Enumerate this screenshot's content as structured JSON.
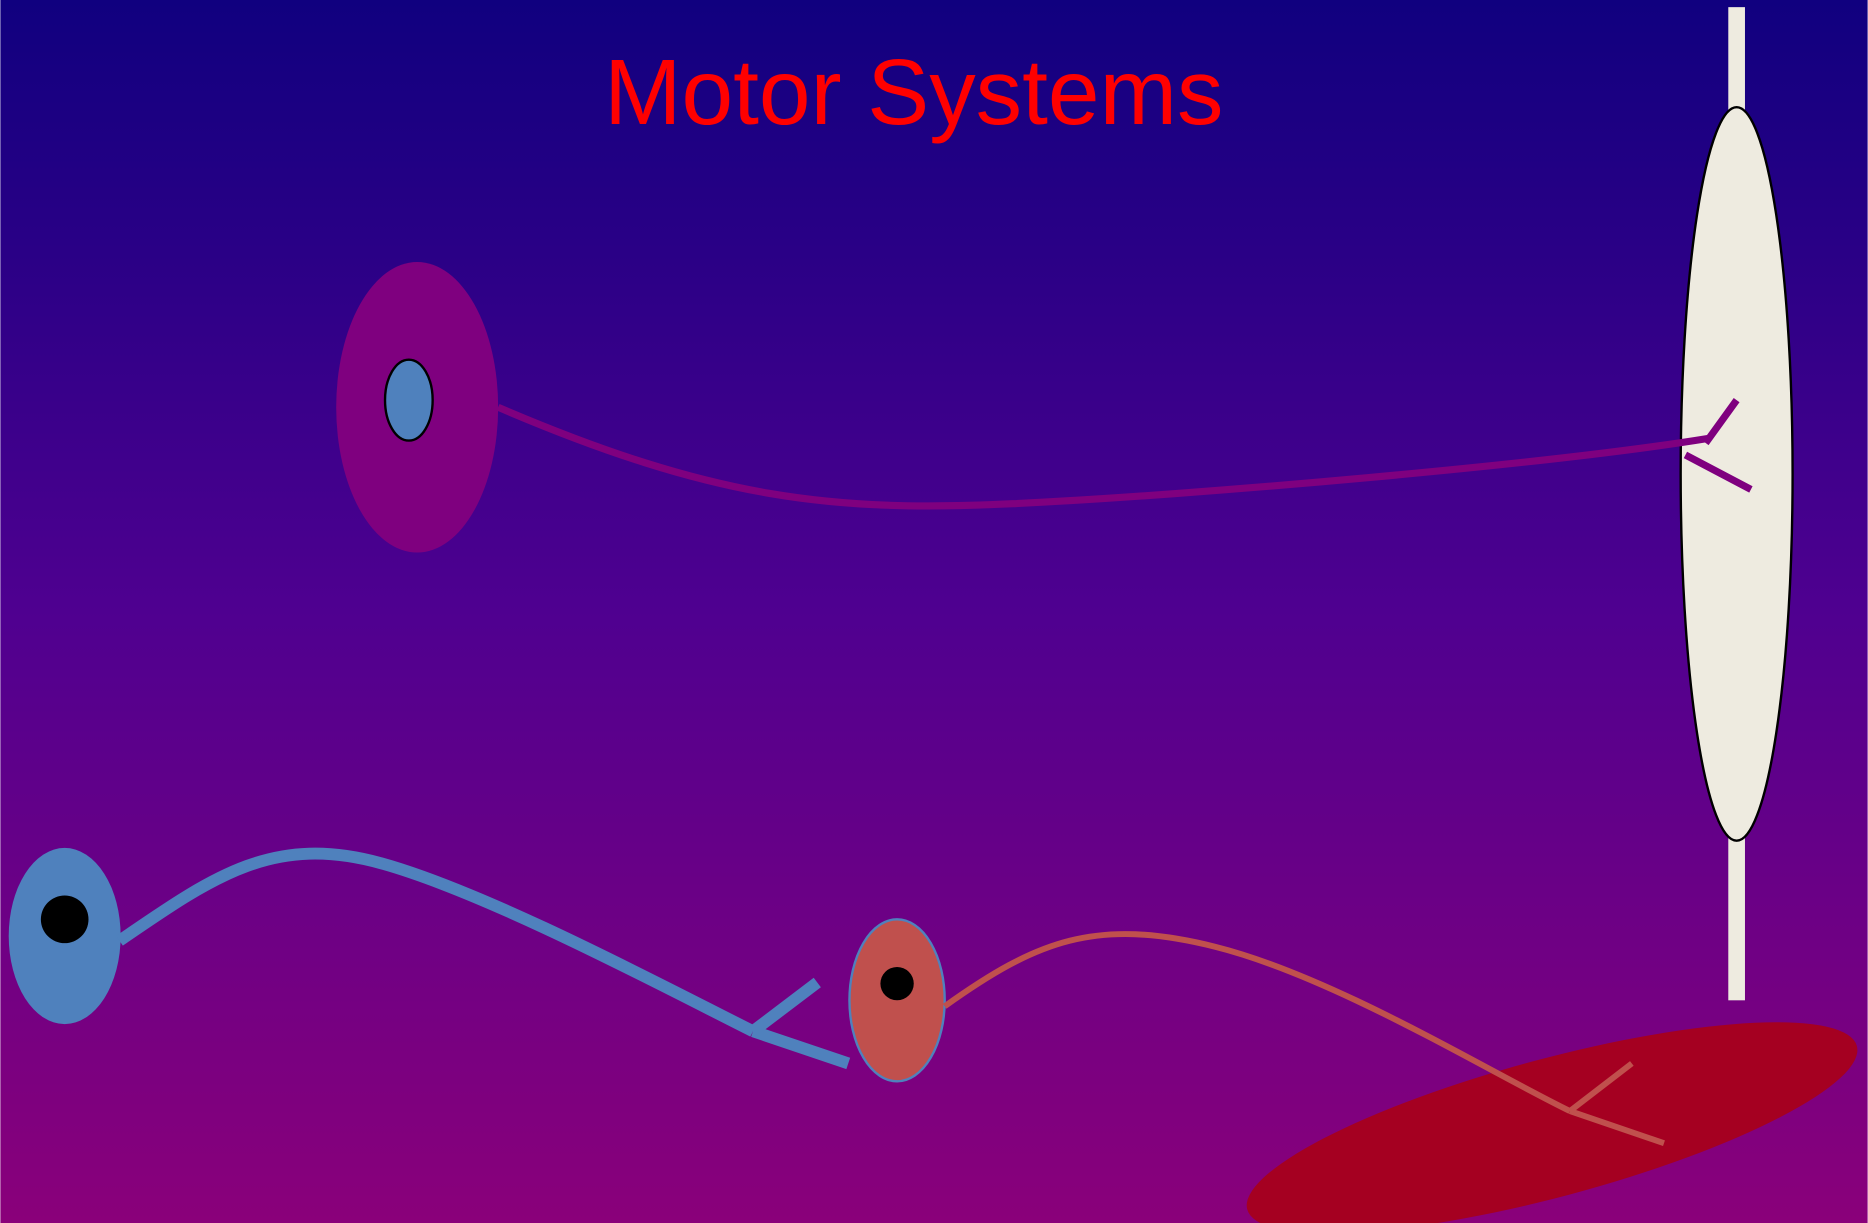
{
  "title": "Motor Systems"
}
